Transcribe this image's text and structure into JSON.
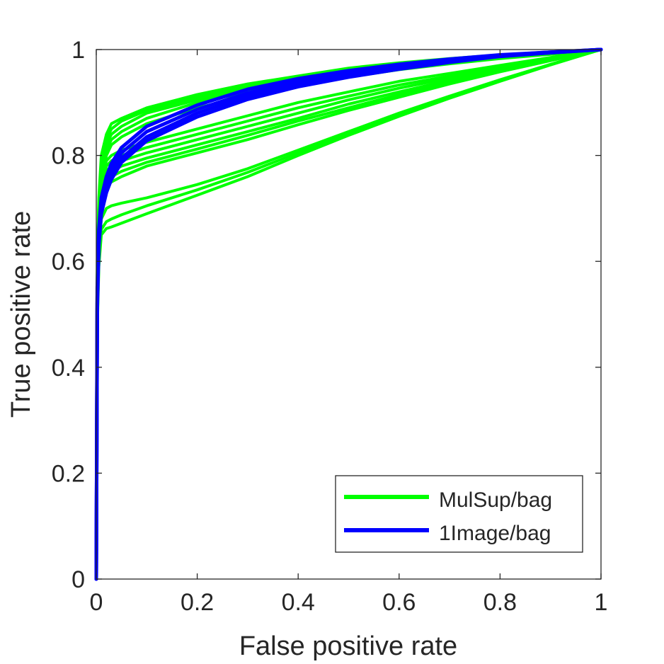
{
  "chart_data": {
    "type": "line",
    "title": "",
    "xlabel": "False positive rate",
    "ylabel": "True positive rate",
    "xlim": [
      0,
      1
    ],
    "ylim": [
      0,
      1
    ],
    "xticks": [
      0,
      0.2,
      0.4,
      0.6,
      0.8,
      1
    ],
    "yticks": [
      0,
      0.2,
      0.4,
      0.6,
      0.8,
      1
    ],
    "xtick_labels": [
      "0",
      "0.2",
      "0.4",
      "0.6",
      "0.8",
      "1"
    ],
    "ytick_labels": [
      "0",
      "0.2",
      "0.4",
      "0.6",
      "0.8",
      "1"
    ],
    "grid": false,
    "legend": {
      "position": "bottom-right",
      "entries": [
        {
          "label": "MulSup/bag",
          "color": "#00ff00"
        },
        {
          "label": "1Image/bag",
          "color": "#0000ff"
        }
      ]
    },
    "series": [
      {
        "name": "MulSup/bag",
        "color": "#00ff00",
        "x": [
          0,
          0.002,
          0.005,
          0.01,
          0.02,
          0.03,
          0.05,
          0.1,
          0.2,
          0.3,
          0.4,
          0.5,
          0.6,
          0.7,
          0.8,
          0.9,
          1
        ],
        "y": [
          0,
          0.6,
          0.72,
          0.8,
          0.84,
          0.86,
          0.87,
          0.89,
          0.915,
          0.935,
          0.95,
          0.965,
          0.975,
          0.983,
          0.99,
          0.995,
          1
        ]
      },
      {
        "name": "MulSup/bag",
        "color": "#00ff00",
        "x": [
          0,
          0.002,
          0.005,
          0.01,
          0.02,
          0.03,
          0.05,
          0.1,
          0.2,
          0.3,
          0.4,
          0.5,
          0.6,
          0.7,
          0.8,
          0.9,
          1
        ],
        "y": [
          0,
          0.58,
          0.71,
          0.78,
          0.83,
          0.85,
          0.865,
          0.885,
          0.91,
          0.93,
          0.947,
          0.96,
          0.972,
          0.98,
          0.988,
          0.994,
          1
        ]
      },
      {
        "name": "MulSup/bag",
        "color": "#00ff00",
        "x": [
          0,
          0.002,
          0.005,
          0.01,
          0.02,
          0.03,
          0.05,
          0.1,
          0.2,
          0.3,
          0.4,
          0.5,
          0.6,
          0.7,
          0.8,
          0.9,
          1
        ],
        "y": [
          0,
          0.57,
          0.7,
          0.77,
          0.82,
          0.84,
          0.855,
          0.88,
          0.905,
          0.925,
          0.942,
          0.957,
          0.968,
          0.978,
          0.986,
          0.993,
          1
        ]
      },
      {
        "name": "MulSup/bag",
        "color": "#00ff00",
        "x": [
          0,
          0.002,
          0.005,
          0.01,
          0.02,
          0.03,
          0.05,
          0.1,
          0.2,
          0.3,
          0.4,
          0.5,
          0.6,
          0.7,
          0.8,
          0.9,
          1
        ],
        "y": [
          0,
          0.56,
          0.69,
          0.76,
          0.81,
          0.83,
          0.845,
          0.87,
          0.9,
          0.92,
          0.938,
          0.953,
          0.965,
          0.976,
          0.985,
          0.992,
          1
        ]
      },
      {
        "name": "MulSup/bag",
        "color": "#00ff00",
        "x": [
          0,
          0.002,
          0.005,
          0.01,
          0.02,
          0.03,
          0.05,
          0.1,
          0.2,
          0.3,
          0.4,
          0.5,
          0.6,
          0.7,
          0.8,
          0.9,
          1
        ],
        "y": [
          0,
          0.55,
          0.68,
          0.75,
          0.8,
          0.82,
          0.835,
          0.86,
          0.89,
          0.912,
          0.932,
          0.948,
          0.962,
          0.973,
          0.983,
          0.991,
          1
        ]
      },
      {
        "name": "MulSup/bag",
        "color": "#00ff00",
        "x": [
          0,
          0.002,
          0.005,
          0.01,
          0.02,
          0.03,
          0.05,
          0.1,
          0.2,
          0.3,
          0.4,
          0.5,
          0.6,
          0.7,
          0.8,
          0.9,
          1
        ],
        "y": [
          0,
          0.55,
          0.68,
          0.75,
          0.79,
          0.8,
          0.81,
          0.825,
          0.85,
          0.875,
          0.9,
          0.92,
          0.94,
          0.955,
          0.97,
          0.985,
          1
        ]
      },
      {
        "name": "MulSup/bag",
        "color": "#00ff00",
        "x": [
          0,
          0.002,
          0.005,
          0.01,
          0.02,
          0.03,
          0.05,
          0.1,
          0.2,
          0.3,
          0.4,
          0.5,
          0.6,
          0.7,
          0.8,
          0.9,
          1
        ],
        "y": [
          0,
          0.54,
          0.67,
          0.74,
          0.78,
          0.79,
          0.8,
          0.815,
          0.84,
          0.865,
          0.89,
          0.912,
          0.933,
          0.95,
          0.967,
          0.984,
          1
        ]
      },
      {
        "name": "MulSup/bag",
        "color": "#00ff00",
        "x": [
          0,
          0.002,
          0.005,
          0.01,
          0.02,
          0.03,
          0.05,
          0.1,
          0.2,
          0.3,
          0.4,
          0.5,
          0.6,
          0.7,
          0.8,
          0.9,
          1
        ],
        "y": [
          0,
          0.53,
          0.66,
          0.73,
          0.77,
          0.78,
          0.79,
          0.805,
          0.83,
          0.855,
          0.88,
          0.905,
          0.927,
          0.946,
          0.964,
          0.982,
          1
        ]
      },
      {
        "name": "MulSup/bag",
        "color": "#00ff00",
        "x": [
          0,
          0.002,
          0.005,
          0.01,
          0.02,
          0.03,
          0.05,
          0.1,
          0.2,
          0.3,
          0.4,
          0.5,
          0.6,
          0.7,
          0.8,
          0.9,
          1
        ],
        "y": [
          0,
          0.52,
          0.65,
          0.72,
          0.76,
          0.77,
          0.78,
          0.795,
          0.82,
          0.845,
          0.87,
          0.897,
          0.92,
          0.942,
          0.962,
          0.981,
          1
        ]
      },
      {
        "name": "MulSup/bag",
        "color": "#00ff00",
        "x": [
          0,
          0.002,
          0.005,
          0.01,
          0.02,
          0.03,
          0.05,
          0.1,
          0.2,
          0.3,
          0.4,
          0.5,
          0.6,
          0.7,
          0.8,
          0.9,
          1
        ],
        "y": [
          0,
          0.51,
          0.64,
          0.71,
          0.75,
          0.76,
          0.77,
          0.787,
          0.812,
          0.838,
          0.865,
          0.89,
          0.915,
          0.938,
          0.96,
          0.98,
          1
        ]
      },
      {
        "name": "MulSup/bag",
        "color": "#00ff00",
        "x": [
          0,
          0.002,
          0.005,
          0.01,
          0.02,
          0.03,
          0.05,
          0.1,
          0.2,
          0.3,
          0.4,
          0.5,
          0.6,
          0.7,
          0.8,
          0.9,
          1
        ],
        "y": [
          0,
          0.5,
          0.63,
          0.7,
          0.74,
          0.75,
          0.76,
          0.78,
          0.805,
          0.83,
          0.858,
          0.885,
          0.91,
          0.935,
          0.958,
          0.979,
          1
        ]
      },
      {
        "name": "MulSup/bag",
        "color": "#00ff00",
        "x": [
          0,
          0.002,
          0.005,
          0.01,
          0.02,
          0.03,
          0.05,
          0.1,
          0.2,
          0.3,
          0.4,
          0.5,
          0.6,
          0.7,
          0.8,
          0.9,
          1
        ],
        "y": [
          0,
          0.5,
          0.62,
          0.68,
          0.7,
          0.705,
          0.71,
          0.72,
          0.745,
          0.775,
          0.81,
          0.845,
          0.88,
          0.912,
          0.943,
          0.972,
          1
        ]
      },
      {
        "name": "MulSup/bag",
        "color": "#00ff00",
        "x": [
          0,
          0.002,
          0.005,
          0.01,
          0.02,
          0.03,
          0.05,
          0.1,
          0.2,
          0.3,
          0.4,
          0.5,
          0.6,
          0.7,
          0.8,
          0.9,
          1
        ],
        "y": [
          0,
          0.48,
          0.6,
          0.66,
          0.675,
          0.68,
          0.688,
          0.705,
          0.735,
          0.768,
          0.805,
          0.84,
          0.876,
          0.91,
          0.942,
          0.972,
          1
        ]
      },
      {
        "name": "MulSup/bag",
        "color": "#00ff00",
        "x": [
          0,
          0.002,
          0.005,
          0.01,
          0.02,
          0.03,
          0.05,
          0.1,
          0.2,
          0.3,
          0.4,
          0.5,
          0.6,
          0.7,
          0.8,
          0.9,
          1
        ],
        "y": [
          0,
          0.47,
          0.59,
          0.65,
          0.662,
          0.665,
          0.672,
          0.69,
          0.725,
          0.76,
          0.8,
          0.838,
          0.874,
          0.908,
          0.94,
          0.971,
          1
        ]
      },
      {
        "name": "1Image/bag",
        "color": "#0000ff",
        "x": [
          0,
          0.002,
          0.005,
          0.01,
          0.02,
          0.03,
          0.05,
          0.1,
          0.2,
          0.3,
          0.4,
          0.5,
          0.6,
          0.7,
          0.8,
          0.9,
          1
        ],
        "y": [
          0,
          0.55,
          0.66,
          0.72,
          0.76,
          0.785,
          0.815,
          0.855,
          0.895,
          0.925,
          0.945,
          0.96,
          0.972,
          0.982,
          0.99,
          0.995,
          1
        ]
      },
      {
        "name": "1Image/bag",
        "color": "#0000ff",
        "x": [
          0,
          0.002,
          0.005,
          0.01,
          0.02,
          0.03,
          0.05,
          0.1,
          0.2,
          0.3,
          0.4,
          0.5,
          0.6,
          0.7,
          0.8,
          0.9,
          1
        ],
        "y": [
          0,
          0.53,
          0.65,
          0.71,
          0.75,
          0.775,
          0.805,
          0.845,
          0.887,
          0.918,
          0.94,
          0.956,
          0.969,
          0.98,
          0.989,
          0.995,
          1
        ]
      },
      {
        "name": "1Image/bag",
        "color": "#0000ff",
        "x": [
          0,
          0.002,
          0.005,
          0.01,
          0.02,
          0.03,
          0.05,
          0.1,
          0.2,
          0.3,
          0.4,
          0.5,
          0.6,
          0.7,
          0.8,
          0.9,
          1
        ],
        "y": [
          0,
          0.52,
          0.64,
          0.7,
          0.74,
          0.765,
          0.795,
          0.835,
          0.88,
          0.912,
          0.935,
          0.952,
          0.966,
          0.978,
          0.988,
          0.994,
          1
        ]
      },
      {
        "name": "1Image/bag",
        "color": "#0000ff",
        "x": [
          0,
          0.002,
          0.005,
          0.01,
          0.02,
          0.03,
          0.05,
          0.1,
          0.2,
          0.3,
          0.4,
          0.5,
          0.6,
          0.7,
          0.8,
          0.9,
          1
        ],
        "y": [
          0,
          0.51,
          0.63,
          0.69,
          0.73,
          0.755,
          0.787,
          0.828,
          0.873,
          0.906,
          0.93,
          0.948,
          0.963,
          0.976,
          0.987,
          0.994,
          1
        ]
      }
    ]
  }
}
